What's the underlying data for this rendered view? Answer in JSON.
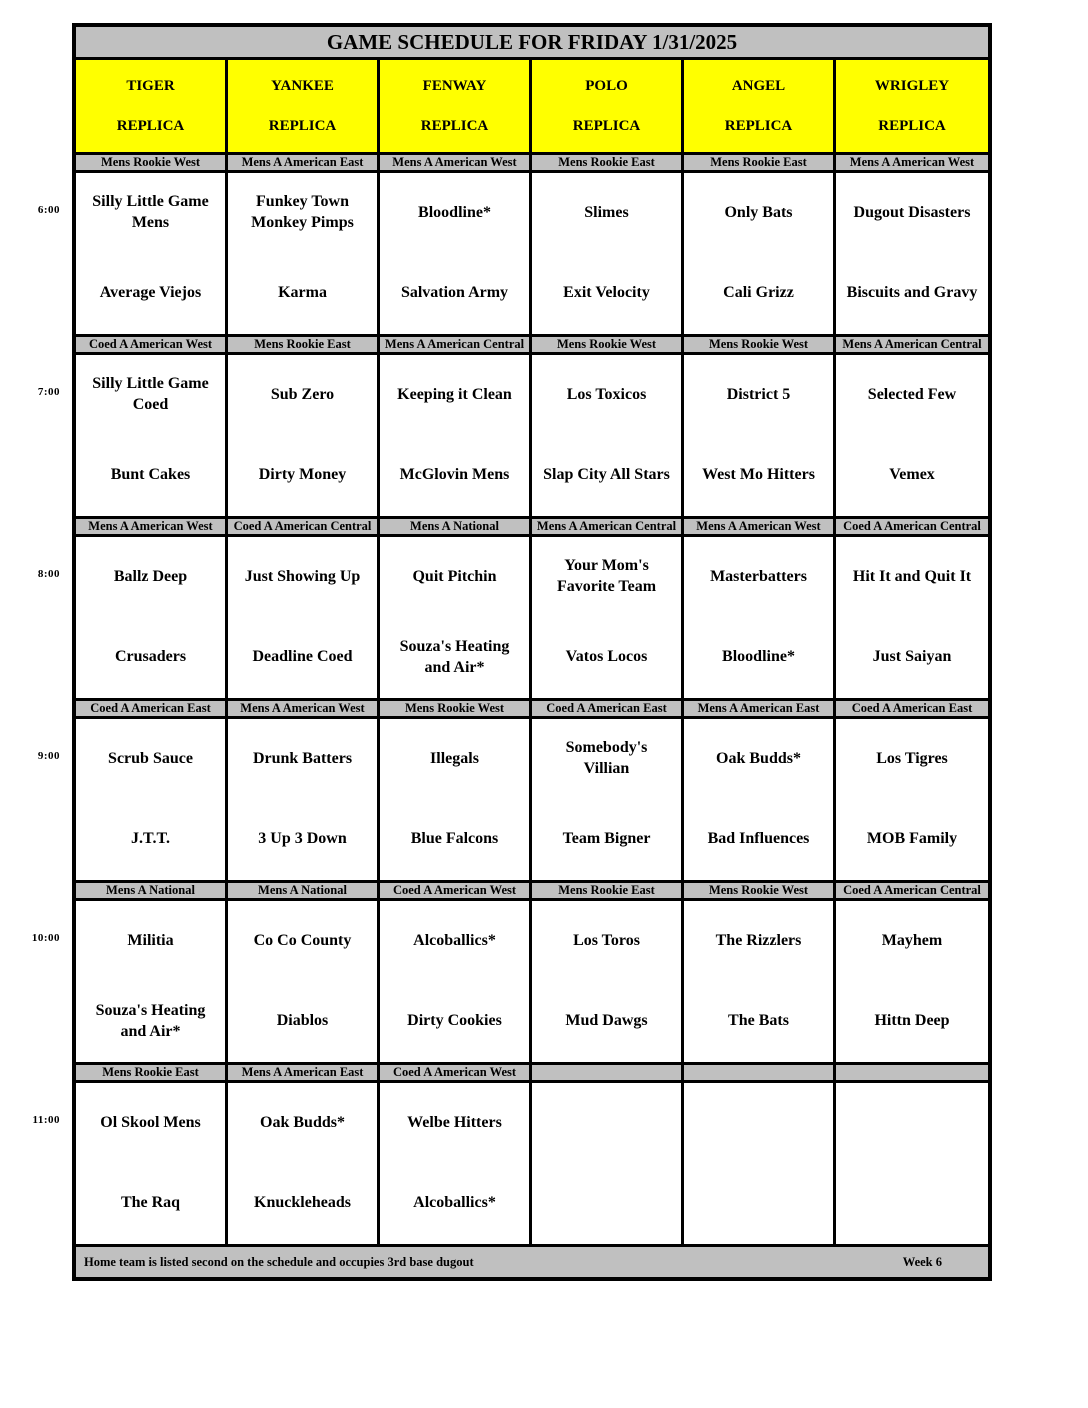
{
  "page": {
    "title": "GAME SCHEDULE FOR FRIDAY 1/31/2025",
    "footer_note": "Home team is listed second on the schedule and occupies 3rd base dugout",
    "week_label": "Week 6"
  },
  "colors": {
    "bar_bg": "#C0C0C0",
    "field_header_bg": "#FFFF00",
    "border": "#000000",
    "text": "#000000"
  },
  "fields": [
    {
      "name": "TIGER",
      "type": "REPLICA"
    },
    {
      "name": "YANKEE",
      "type": "REPLICA"
    },
    {
      "name": "FENWAY",
      "type": "REPLICA"
    },
    {
      "name": "POLO",
      "type": "REPLICA"
    },
    {
      "name": "ANGEL",
      "type": "REPLICA"
    },
    {
      "name": "WRIGLEY",
      "type": "REPLICA"
    }
  ],
  "time_slots": [
    {
      "time": "6:00",
      "games": [
        {
          "division": "Mens Rookie West",
          "away": "Silly Little Game Mens",
          "home": "Average Viejos"
        },
        {
          "division": "Mens A American East",
          "away": "Funkey Town Monkey Pimps",
          "home": "Karma"
        },
        {
          "division": "Mens A American West",
          "away": "Bloodline*",
          "home": "Salvation Army"
        },
        {
          "division": "Mens Rookie East",
          "away": "Slimes",
          "home": "Exit Velocity"
        },
        {
          "division": "Mens Rookie East",
          "away": "Only Bats",
          "home": "Cali Grizz"
        },
        {
          "division": "Mens A American West",
          "away": "Dugout Disasters",
          "home": "Biscuits and Gravy"
        }
      ]
    },
    {
      "time": "7:00",
      "games": [
        {
          "division": "Coed A American West",
          "away": "Silly Little Game Coed",
          "home": "Bunt Cakes"
        },
        {
          "division": "Mens Rookie East",
          "away": "Sub Zero",
          "home": "Dirty Money"
        },
        {
          "division": "Mens A American Central",
          "away": "Keeping it Clean",
          "home": "McGlovin Mens"
        },
        {
          "division": "Mens Rookie West",
          "away": "Los Toxicos",
          "home": "Slap City All Stars"
        },
        {
          "division": "Mens Rookie West",
          "away": "District 5",
          "home": "West Mo Hitters"
        },
        {
          "division": "Mens A American Central",
          "away": "Selected Few",
          "home": "Vemex"
        }
      ]
    },
    {
      "time": "8:00",
      "games": [
        {
          "division": "Mens A American West",
          "away": "Ballz Deep",
          "home": "Crusaders"
        },
        {
          "division": "Coed A American Central",
          "away": "Just Showing Up",
          "home": "Deadline Coed"
        },
        {
          "division": "Mens A National",
          "away": "Quit Pitchin",
          "home": "Souza's Heating and Air*"
        },
        {
          "division": "Mens A American Central",
          "away": "Your Mom's Favorite Team",
          "home": "Vatos Locos"
        },
        {
          "division": "Mens A American West",
          "away": "Masterbatters",
          "home": "Bloodline*"
        },
        {
          "division": "Coed A American Central",
          "away": "Hit It and Quit It",
          "home": "Just Saiyan"
        }
      ]
    },
    {
      "time": "9:00",
      "games": [
        {
          "division": "Coed A American East",
          "away": "Scrub Sauce",
          "home": "J.T.T."
        },
        {
          "division": "Mens A American West",
          "away": "Drunk Batters",
          "home": "3 Up 3 Down"
        },
        {
          "division": "Mens Rookie West",
          "away": "Illegals",
          "home": "Blue Falcons"
        },
        {
          "division": "Coed A American East",
          "away": "Somebody's Villian",
          "home": "Team Bigner"
        },
        {
          "division": "Mens A American East",
          "away": "Oak Budds*",
          "home": "Bad Influences"
        },
        {
          "division": "Coed A American East",
          "away": "Los Tigres",
          "home": "MOB Family"
        }
      ]
    },
    {
      "time": "10:00",
      "games": [
        {
          "division": "Mens A National",
          "away": "Militia",
          "home": "Souza's Heating and Air*"
        },
        {
          "division": "Mens A National",
          "away": "Co Co County",
          "home": "Diablos"
        },
        {
          "division": "Coed A American West",
          "away": "Alcoballics*",
          "home": "Dirty Cookies"
        },
        {
          "division": "Mens Rookie East",
          "away": "Los Toros",
          "home": "Mud Dawgs"
        },
        {
          "division": "Mens Rookie West",
          "away": "The Rizzlers",
          "home": "The Bats"
        },
        {
          "division": "Coed A American Central",
          "away": "Mayhem",
          "home": "Hittn Deep"
        }
      ]
    },
    {
      "time": "11:00",
      "games": [
        {
          "division": "Mens Rookie East",
          "away": "Ol Skool Mens",
          "home": "The Raq"
        },
        {
          "division": "Mens A American East",
          "away": "Oak Budds*",
          "home": "Knuckleheads"
        },
        {
          "division": "Coed A American West",
          "away": "Welbe Hitters",
          "home": "Alcoballics*"
        },
        {
          "division": "",
          "away": "",
          "home": ""
        },
        {
          "division": "",
          "away": "",
          "home": ""
        },
        {
          "division": "",
          "away": "",
          "home": ""
        }
      ]
    }
  ]
}
